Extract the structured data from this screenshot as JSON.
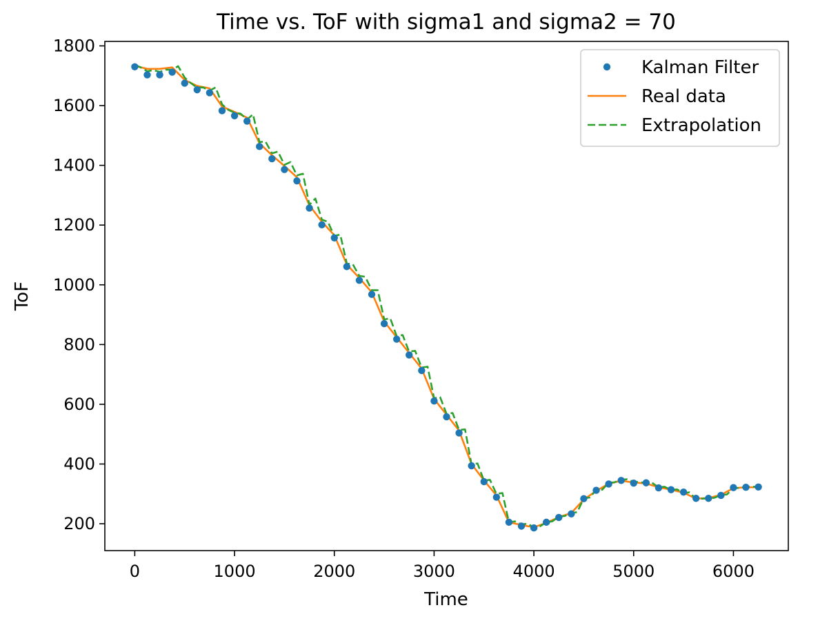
{
  "chart_data": {
    "type": "line",
    "title": "Time vs. ToF with sigma1 and sigma2 = 70",
    "xlabel": "Time",
    "ylabel": "ToF",
    "xlim": [
      -300,
      6550
    ],
    "ylim": [
      110,
      1815
    ],
    "xticks": [
      0,
      1000,
      2000,
      3000,
      4000,
      5000,
      6000
    ],
    "yticks": [
      200,
      400,
      600,
      800,
      1000,
      1200,
      1400,
      1600,
      1800
    ],
    "grid": false,
    "legend_position": "top-right",
    "series": [
      {
        "name": "Kalman Filter",
        "style": "dots",
        "color": "#1f77b4",
        "x": [
          0,
          125,
          250,
          375,
          500,
          625,
          750,
          875,
          1000,
          1125,
          1250,
          1375,
          1500,
          1625,
          1750,
          1875,
          2000,
          2125,
          2250,
          2375,
          2500,
          2625,
          2750,
          2875,
          3000,
          3125,
          3250,
          3375,
          3500,
          3625,
          3750,
          3875,
          4000,
          4125,
          4250,
          4375,
          4500,
          4625,
          4750,
          4875,
          5000,
          5125,
          5250,
          5375,
          5500,
          5625,
          5750,
          5875,
          6000,
          6125,
          6250
        ],
        "y": [
          1730,
          1703,
          1703,
          1712,
          1675,
          1653,
          1643,
          1583,
          1566,
          1548,
          1463,
          1422,
          1386,
          1348,
          1257,
          1201,
          1157,
          1061,
          1015,
          968,
          870,
          818,
          765,
          713,
          611,
          558,
          504,
          394,
          341,
          289,
          205,
          192,
          186,
          205,
          221,
          233,
          284,
          312,
          333,
          345,
          336,
          337,
          320,
          314,
          306,
          285,
          285,
          295,
          321,
          322,
          323
        ]
      },
      {
        "name": "Real data",
        "style": "solid",
        "color": "#ff7f0e",
        "x": [
          0,
          125,
          250,
          375,
          500,
          625,
          750,
          875,
          1000,
          1125,
          1250,
          1375,
          1500,
          1625,
          1750,
          1875,
          2000,
          2125,
          2250,
          2375,
          2500,
          2625,
          2750,
          2875,
          3000,
          3125,
          3250,
          3375,
          3500,
          3625,
          3750,
          3875,
          4000,
          4125,
          4250,
          4375,
          4500,
          4625,
          4750,
          4875,
          5000,
          5125,
          5250,
          5375,
          5500,
          5625,
          5750,
          5875,
          6000,
          6125,
          6250
        ],
        "y": [
          1733,
          1723,
          1723,
          1728,
          1686,
          1666,
          1658,
          1597,
          1579,
          1560,
          1474,
          1434,
          1398,
          1360,
          1266,
          1211,
          1166,
          1068,
          1023,
          975,
          877,
          824,
          772,
          720,
          618,
          565,
          512,
          400,
          345,
          295,
          205,
          196,
          188,
          203,
          222,
          236,
          281,
          310,
          334,
          344,
          338,
          335,
          322,
          314,
          304,
          284,
          286,
          297,
          319,
          322,
          322
        ]
      },
      {
        "name": "Extrapolation",
        "style": "dashed",
        "color": "#2ca02c",
        "x": [
          0,
          60,
          125,
          185,
          250,
          310,
          375,
          435,
          500,
          560,
          625,
          685,
          750,
          810,
          875,
          935,
          1000,
          1060,
          1125,
          1185,
          1250,
          1310,
          1375,
          1435,
          1500,
          1560,
          1625,
          1685,
          1750,
          1810,
          1875,
          1935,
          2000,
          2060,
          2125,
          2185,
          2250,
          2310,
          2375,
          2435,
          2500,
          2560,
          2625,
          2685,
          2750,
          2810,
          2875,
          2935,
          3000,
          3060,
          3125,
          3185,
          3250,
          3310,
          3375,
          3435,
          3500,
          3560,
          3625,
          3685,
          3750,
          3810,
          3875,
          3935,
          4000,
          4060,
          4125,
          4185,
          4250,
          4310,
          4375,
          4435,
          4500,
          4560,
          4625,
          4685,
          4750,
          4810,
          4875,
          4935,
          5000,
          5060,
          5125,
          5185,
          5250,
          5310,
          5375,
          5435,
          5500,
          5560,
          5625,
          5685,
          5750,
          5810,
          5875,
          5935,
          6000,
          6060,
          6125,
          6185,
          6250
        ],
        "y": [
          1737,
          1728,
          1715,
          1719,
          1713,
          1720,
          1720,
          1732,
          1694,
          1676,
          1660,
          1661,
          1650,
          1661,
          1604,
          1586,
          1576,
          1573,
          1553,
          1571,
          1478,
          1480,
          1440,
          1446,
          1402,
          1411,
          1366,
          1372,
          1268,
          1289,
          1218,
          1211,
          1164,
          1168,
          1072,
          1069,
          1030,
          1027,
          982,
          982,
          884,
          888,
          828,
          832,
          776,
          779,
          723,
          726,
          620,
          624,
          568,
          571,
          514,
          516,
          398,
          402,
          344,
          347,
          300,
          303,
          205,
          208,
          198,
          200,
          188,
          191,
          205,
          208,
          224,
          226,
          236,
          239,
          285,
          288,
          313,
          314,
          337,
          339,
          347,
          349,
          340,
          340,
          335,
          337,
          322,
          324,
          313,
          315,
          303,
          305,
          282,
          284,
          285,
          287,
          296,
          298,
          319,
          320,
          324,
          324,
          324
        ]
      }
    ]
  }
}
